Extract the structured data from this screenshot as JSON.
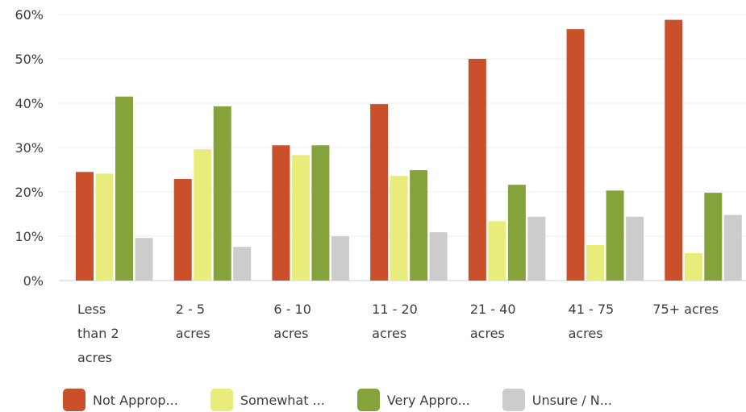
{
  "chart_data": {
    "type": "bar",
    "title": "",
    "xlabel": "",
    "ylabel": "",
    "ylim": [
      0,
      60
    ],
    "y_ticks": [
      "0%",
      "10%",
      "20%",
      "30%",
      "40%",
      "50%",
      "60%"
    ],
    "y_tick_values": [
      0,
      10,
      20,
      30,
      40,
      50,
      60
    ],
    "grid": true,
    "legend_position": "bottom",
    "categories": [
      [
        "Less",
        "than 2",
        "acres"
      ],
      [
        "2 - 5",
        "acres"
      ],
      [
        "6 - 10",
        "acres"
      ],
      [
        "11 - 20",
        "acres"
      ],
      [
        "21 - 40",
        "acres"
      ],
      [
        "41 - 75",
        "acres"
      ],
      [
        "75+ acres"
      ]
    ],
    "series": [
      {
        "name": "Not Approp...",
        "color": "#c9502a",
        "values": [
          24.5,
          22.9,
          30.5,
          39.8,
          50.0,
          56.7,
          58.8
        ]
      },
      {
        "name": "Somewhat ...",
        "color": "#e8ec7a",
        "values": [
          24.1,
          29.6,
          28.3,
          23.6,
          13.4,
          8.0,
          6.2
        ]
      },
      {
        "name": "Very Appro...",
        "color": "#85a33a",
        "values": [
          41.5,
          39.3,
          30.5,
          24.9,
          21.6,
          20.3,
          19.8
        ]
      },
      {
        "name": "Unsure / N...",
        "color": "#cccccc",
        "values": [
          9.6,
          7.6,
          10.0,
          10.9,
          14.4,
          14.4,
          14.8
        ]
      }
    ]
  }
}
